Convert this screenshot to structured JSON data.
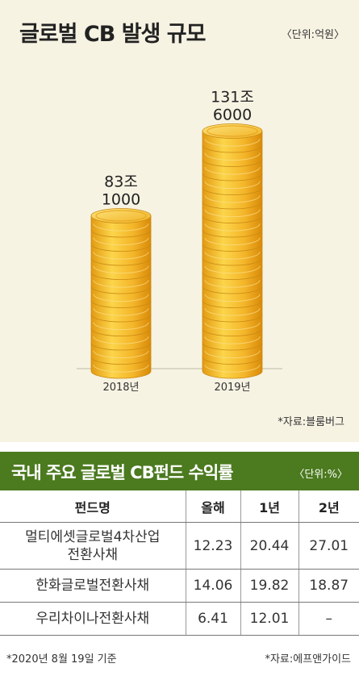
{
  "chart_data": {
    "type": "bar",
    "title": "글로벌 CB 발생 규모",
    "unit": "〈단위:억원〉",
    "categories": [
      "2018년",
      "2019년"
    ],
    "values": [
      831000,
      1316000
    ],
    "value_labels": [
      [
        "83조",
        "1000"
      ],
      [
        "131조",
        "6000"
      ]
    ],
    "colors": {
      "coin_light": "#f9cf3a",
      "coin_dark": "#d98a08",
      "background": "#f7f3e3"
    },
    "source": "*자료:블룸버그"
  },
  "fund_table": {
    "title": "국내 주요 글로벌 CB펀드 수익률",
    "unit": "〈단위:%〉",
    "headers": [
      "펀드명",
      "올해",
      "1년",
      "2년"
    ],
    "rows": [
      {
        "name": "멀티에셋글로벌4차산업\n전환사채",
        "ytd": "12.23",
        "y1": "20.44",
        "y2": "27.01"
      },
      {
        "name": "한화글로벌전환사채",
        "ytd": "14.06",
        "y1": "19.82",
        "y2": "18.87"
      },
      {
        "name": "우리차이나전환사채",
        "ytd": "6.41",
        "y1": "12.01",
        "y2": "–"
      }
    ],
    "header_color": "#4b7a1f"
  },
  "footer": {
    "note": "*2020년 8월 19일 기준",
    "source": "*자료:에프앤가이드"
  }
}
